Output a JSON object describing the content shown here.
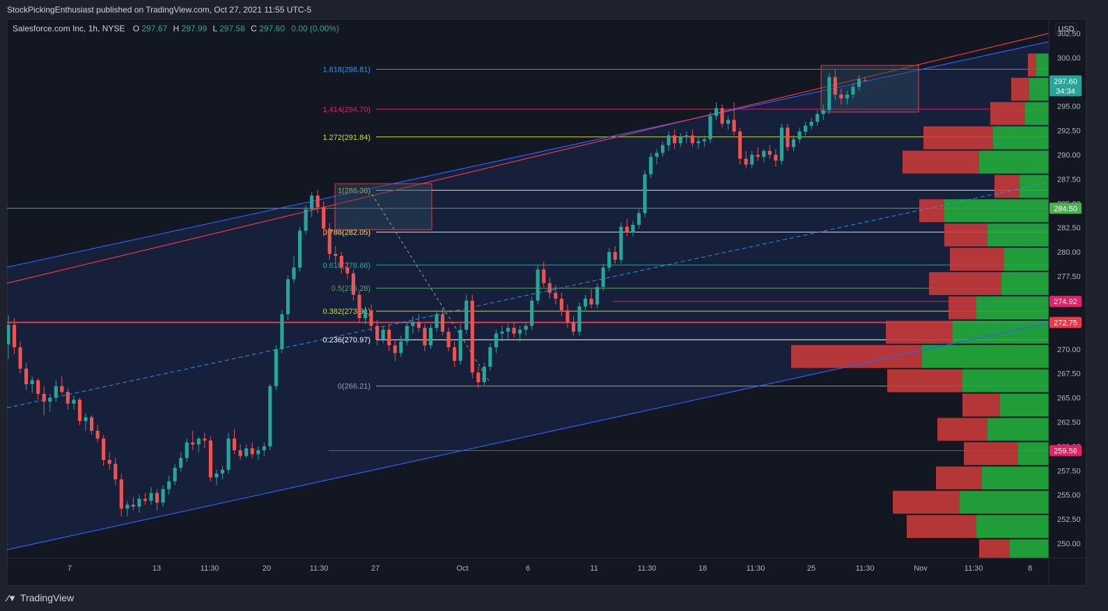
{
  "header": {
    "publisher": "StockPickingEnthusiast published on TradingView.com, Oct 27, 2021 11:55 UTC-5"
  },
  "legend": {
    "symbol": "Salesforce.com Inc, 1h, NYSE",
    "o_label": "O",
    "o_value": "297.67",
    "h_label": "H",
    "h_value": "297.99",
    "l_label": "L",
    "l_value": "297.58",
    "c_label": "C",
    "c_value": "297.60",
    "change": "0.00 (0.00%)"
  },
  "currency": "USD",
  "footer": {
    "brand": "TradingView"
  },
  "colors": {
    "up": "#26a69a",
    "down": "#ef5350",
    "channel": "#2962ff",
    "trend": "#f23645",
    "vp_up": "#22ab3c",
    "vp_down": "#c73a3a"
  },
  "chart_data": {
    "type": "candlestick",
    "ylim": [
      248.5,
      304.0
    ],
    "y_ticks": [
      250.0,
      252.5,
      255.0,
      257.5,
      260.0,
      262.5,
      265.0,
      267.5,
      270.0,
      272.5,
      275.0,
      277.5,
      280.0,
      282.5,
      285.0,
      287.5,
      290.0,
      292.5,
      295.0,
      297.5,
      300.0,
      302.5
    ],
    "x_ticks": [
      "7",
      "13",
      "11:30",
      "20",
      "11:30",
      "27",
      "Oct",
      "6",
      "11",
      "11:30",
      "18",
      "11:30",
      "25",
      "11:30",
      "Nov",
      "11:30",
      "8"
    ],
    "fib_levels": [
      {
        "label": "1.618(298.81)",
        "value": 298.81,
        "color": "#2196f3"
      },
      {
        "label": "1.414(294.70)",
        "value": 294.7,
        "color": "#e91e63"
      },
      {
        "label": "1.272(291.84)",
        "value": 291.84,
        "color": "#cddc39"
      },
      {
        "label": "1(286.36)",
        "value": 286.36,
        "color": "#ffeb3b"
      },
      {
        "label": "0.786(282.05)",
        "value": 282.05,
        "color": "#ffeb3b"
      },
      {
        "label": "0.618(278.66)",
        "value": 278.66,
        "color": "#26a69a"
      },
      {
        "label": "0.5(276.28)",
        "value": 276.28,
        "color": "#4caf50"
      },
      {
        "label": "0.382(273.91)",
        "value": 273.91,
        "color": "#cddc39"
      },
      {
        "label": "0.236(270.97)",
        "value": 270.97,
        "color": "#ffffff"
      },
      {
        "label": "0(266.21)",
        "value": 266.21,
        "color": "#9e9e9e"
      }
    ],
    "price_tags": [
      {
        "label": "297.60",
        "sub": "34:34",
        "value": 297.6,
        "color": "#26a69a"
      },
      {
        "label": "284.50",
        "value": 284.5,
        "color": "#4caf50"
      },
      {
        "label": "274.92",
        "value": 274.92,
        "color": "#e91e63"
      },
      {
        "label": "272.75",
        "value": 272.75,
        "color": "#f23645"
      },
      {
        "label": "259.56",
        "value": 259.56,
        "color": "#e91e63"
      }
    ],
    "horizontal_lines": [
      {
        "value": 284.5,
        "color": "#4caf50"
      },
      {
        "value": 272.75,
        "color": "#f23645"
      },
      {
        "value": 274.92,
        "color": "#e91e63"
      },
      {
        "value": 259.56,
        "color": "#e91e63"
      }
    ],
    "volume_profile": [
      {
        "price": 299.25,
        "up": 18,
        "down": 12
      },
      {
        "price": 296.75,
        "up": 28,
        "down": 26
      },
      {
        "price": 294.25,
        "up": 34,
        "down": 50
      },
      {
        "price": 291.75,
        "up": 80,
        "down": 100
      },
      {
        "price": 289.25,
        "up": 100,
        "down": 110
      },
      {
        "price": 286.75,
        "up": 42,
        "down": 36
      },
      {
        "price": 284.25,
        "up": 150,
        "down": 36
      },
      {
        "price": 281.75,
        "up": 88,
        "down": 62
      },
      {
        "price": 279.25,
        "up": 64,
        "down": 78
      },
      {
        "price": 276.75,
        "up": 68,
        "down": 104
      },
      {
        "price": 274.25,
        "up": 104,
        "down": 40
      },
      {
        "price": 271.75,
        "up": 138,
        "down": 96
      },
      {
        "price": 269.25,
        "up": 182,
        "down": 188
      },
      {
        "price": 266.75,
        "up": 124,
        "down": 108
      },
      {
        "price": 264.25,
        "up": 70,
        "down": 54
      },
      {
        "price": 261.75,
        "up": 88,
        "down": 72
      },
      {
        "price": 259.25,
        "up": 44,
        "down": 78
      },
      {
        "price": 256.75,
        "up": 96,
        "down": 66
      },
      {
        "price": 254.25,
        "up": 128,
        "down": 96
      },
      {
        "price": 251.75,
        "up": 104,
        "down": 100
      },
      {
        "price": 249.25,
        "up": 56,
        "down": 44
      },
      {
        "price": 246.75,
        "up": 78,
        "down": 52
      }
    ],
    "ohlc": [
      [
        270.5,
        273.5,
        269.0,
        272.5
      ],
      [
        272.5,
        273.2,
        269.5,
        270.2
      ],
      [
        270.2,
        270.8,
        267.5,
        268.0
      ],
      [
        268.0,
        268.6,
        265.8,
        266.4
      ],
      [
        266.4,
        267.2,
        265.5,
        266.8
      ],
      [
        266.8,
        267.0,
        264.8,
        265.4
      ],
      [
        265.4,
        266.2,
        263.2,
        264.6
      ],
      [
        264.6,
        265.4,
        263.6,
        265.0
      ],
      [
        265.0,
        266.8,
        264.6,
        266.2
      ],
      [
        266.2,
        267.2,
        265.4,
        265.6
      ],
      [
        265.6,
        266.0,
        263.8,
        264.4
      ],
      [
        264.4,
        265.2,
        263.8,
        264.8
      ],
      [
        264.8,
        265.0,
        262.2,
        262.6
      ],
      [
        262.6,
        263.4,
        261.6,
        263.0
      ],
      [
        263.0,
        263.2,
        261.2,
        261.6
      ],
      [
        261.6,
        262.2,
        260.4,
        260.8
      ],
      [
        260.8,
        261.2,
        258.0,
        258.6
      ],
      [
        258.6,
        259.4,
        257.6,
        258.2
      ],
      [
        258.2,
        258.8,
        256.0,
        256.6
      ],
      [
        256.6,
        257.2,
        252.8,
        253.6
      ],
      [
        253.6,
        254.4,
        252.8,
        254.0
      ],
      [
        254.0,
        254.8,
        253.4,
        253.8
      ],
      [
        253.8,
        255.0,
        253.2,
        254.6
      ],
      [
        254.6,
        255.2,
        254.0,
        254.4
      ],
      [
        254.4,
        255.8,
        254.0,
        255.2
      ],
      [
        255.2,
        255.6,
        253.4,
        254.2
      ],
      [
        254.2,
        256.0,
        253.8,
        255.6
      ],
      [
        255.6,
        257.0,
        255.0,
        256.4
      ],
      [
        256.4,
        258.2,
        256.0,
        257.8
      ],
      [
        257.8,
        259.4,
        257.4,
        258.8
      ],
      [
        258.8,
        260.8,
        258.4,
        260.4
      ],
      [
        260.4,
        261.6,
        259.6,
        260.2
      ],
      [
        260.2,
        261.0,
        259.4,
        260.8
      ],
      [
        260.8,
        261.4,
        259.8,
        260.6
      ],
      [
        260.6,
        261.0,
        256.4,
        256.8
      ],
      [
        256.8,
        257.6,
        256.0,
        257.2
      ],
      [
        257.2,
        258.0,
        256.6,
        257.6
      ],
      [
        257.6,
        261.4,
        257.2,
        260.8
      ],
      [
        260.8,
        261.8,
        259.2,
        259.6
      ],
      [
        259.6,
        260.2,
        258.6,
        259.0
      ],
      [
        259.0,
        260.2,
        258.8,
        259.8
      ],
      [
        259.8,
        260.4,
        258.8,
        259.2
      ],
      [
        259.2,
        260.0,
        258.6,
        259.6
      ],
      [
        259.6,
        260.4,
        259.0,
        260.0
      ],
      [
        260.0,
        266.4,
        259.6,
        266.2
      ],
      [
        266.2,
        270.4,
        265.8,
        270.0
      ],
      [
        270.0,
        274.0,
        269.6,
        273.6
      ],
      [
        273.6,
        277.6,
        273.0,
        277.2
      ],
      [
        277.2,
        279.6,
        276.8,
        278.4
      ],
      [
        278.4,
        282.6,
        278.0,
        282.2
      ],
      [
        282.2,
        284.8,
        281.8,
        284.4
      ],
      [
        284.4,
        286.2,
        283.6,
        285.8
      ],
      [
        285.8,
        286.4,
        284.0,
        284.6
      ],
      [
        284.6,
        285.2,
        281.6,
        282.4
      ],
      [
        282.4,
        283.0,
        279.2,
        279.8
      ],
      [
        279.8,
        280.6,
        278.8,
        279.6
      ],
      [
        279.6,
        280.0,
        277.8,
        278.4
      ],
      [
        278.4,
        279.0,
        277.2,
        277.8
      ],
      [
        277.8,
        278.2,
        275.0,
        275.6
      ],
      [
        275.6,
        276.0,
        272.8,
        273.2
      ],
      [
        273.2,
        274.4,
        272.6,
        274.0
      ],
      [
        274.0,
        274.6,
        271.8,
        272.4
      ],
      [
        272.4,
        273.0,
        270.4,
        271.0
      ],
      [
        271.0,
        272.4,
        270.6,
        272.0
      ],
      [
        272.0,
        272.6,
        269.8,
        270.4
      ],
      [
        270.4,
        271.0,
        268.8,
        269.6
      ],
      [
        269.6,
        271.4,
        269.2,
        270.8
      ],
      [
        270.8,
        272.8,
        270.4,
        272.4
      ],
      [
        272.4,
        273.4,
        271.6,
        272.8
      ],
      [
        272.8,
        273.6,
        271.8,
        272.2
      ],
      [
        272.2,
        272.6,
        269.8,
        270.4
      ],
      [
        270.4,
        272.6,
        270.0,
        272.2
      ],
      [
        272.2,
        274.0,
        271.8,
        273.6
      ],
      [
        273.6,
        274.2,
        271.4,
        271.8
      ],
      [
        271.8,
        272.2,
        269.8,
        270.2
      ],
      [
        270.2,
        270.8,
        268.2,
        268.8
      ],
      [
        268.8,
        272.6,
        268.4,
        272.0
      ],
      [
        272.0,
        275.6,
        271.6,
        275.0
      ],
      [
        275.0,
        275.6,
        267.0,
        267.6
      ],
      [
        267.6,
        268.2,
        266.0,
        266.6
      ],
      [
        266.6,
        268.6,
        266.2,
        268.2
      ],
      [
        268.2,
        270.6,
        267.8,
        270.2
      ],
      [
        270.2,
        272.0,
        269.6,
        271.6
      ],
      [
        271.6,
        272.4,
        270.8,
        271.8
      ],
      [
        271.8,
        272.6,
        271.0,
        272.2
      ],
      [
        272.2,
        272.8,
        271.2,
        271.6
      ],
      [
        271.6,
        272.4,
        270.8,
        272.0
      ],
      [
        272.0,
        272.8,
        271.4,
        272.4
      ],
      [
        272.4,
        275.4,
        272.0,
        275.0
      ],
      [
        275.0,
        278.6,
        274.6,
        278.2
      ],
      [
        278.2,
        279.0,
        276.4,
        276.8
      ],
      [
        276.8,
        277.4,
        275.2,
        275.8
      ],
      [
        275.8,
        276.6,
        274.6,
        275.2
      ],
      [
        275.2,
        275.8,
        273.4,
        274.0
      ],
      [
        274.0,
        274.6,
        272.2,
        272.8
      ],
      [
        272.8,
        273.4,
        271.4,
        271.8
      ],
      [
        271.8,
        274.8,
        271.4,
        274.4
      ],
      [
        274.4,
        275.6,
        274.0,
        275.2
      ],
      [
        275.2,
        276.2,
        274.2,
        274.6
      ],
      [
        274.6,
        276.8,
        274.2,
        276.4
      ],
      [
        276.4,
        278.8,
        276.0,
        278.4
      ],
      [
        278.4,
        280.4,
        278.0,
        280.0
      ],
      [
        280.0,
        280.6,
        278.8,
        279.2
      ],
      [
        279.2,
        283.0,
        278.8,
        282.6
      ],
      [
        282.6,
        283.4,
        281.6,
        282.0
      ],
      [
        282.0,
        283.2,
        281.6,
        282.8
      ],
      [
        282.8,
        284.4,
        282.4,
        284.0
      ],
      [
        284.0,
        288.4,
        283.6,
        288.0
      ],
      [
        288.0,
        290.2,
        287.6,
        289.8
      ],
      [
        289.8,
        290.6,
        289.0,
        290.2
      ],
      [
        290.2,
        291.4,
        289.8,
        291.0
      ],
      [
        291.0,
        292.4,
        290.4,
        292.0
      ],
      [
        292.0,
        292.6,
        290.6,
        291.2
      ],
      [
        291.2,
        292.2,
        290.8,
        291.8
      ],
      [
        291.8,
        292.4,
        291.2,
        292.0
      ],
      [
        292.0,
        292.6,
        290.8,
        291.2
      ],
      [
        291.2,
        291.8,
        290.6,
        291.4
      ],
      [
        291.4,
        292.0,
        290.8,
        291.6
      ],
      [
        291.6,
        294.4,
        291.2,
        294.0
      ],
      [
        294.0,
        295.4,
        293.6,
        294.8
      ],
      [
        294.8,
        295.2,
        292.8,
        293.2
      ],
      [
        293.2,
        294.0,
        292.6,
        293.6
      ],
      [
        293.6,
        295.4,
        292.0,
        292.4
      ],
      [
        292.4,
        292.8,
        289.0,
        289.6
      ],
      [
        289.6,
        290.4,
        288.6,
        289.0
      ],
      [
        289.0,
        290.4,
        288.6,
        290.0
      ],
      [
        290.0,
        290.8,
        289.4,
        289.8
      ],
      [
        289.8,
        290.6,
        289.2,
        290.4
      ],
      [
        290.4,
        291.0,
        289.6,
        290.0
      ],
      [
        290.0,
        290.6,
        288.8,
        289.4
      ],
      [
        289.4,
        293.2,
        289.0,
        292.8
      ],
      [
        292.8,
        293.2,
        290.4,
        290.8
      ],
      [
        290.8,
        292.0,
        290.4,
        291.6
      ],
      [
        291.6,
        292.8,
        291.2,
        292.4
      ],
      [
        292.4,
        293.4,
        292.0,
        293.0
      ],
      [
        293.0,
        293.8,
        292.6,
        293.4
      ],
      [
        293.4,
        294.6,
        293.0,
        294.2
      ],
      [
        294.2,
        295.2,
        293.6,
        294.6
      ],
      [
        294.6,
        298.4,
        294.2,
        298.0
      ],
      [
        298.0,
        298.8,
        295.6,
        296.2
      ],
      [
        296.2,
        296.8,
        295.2,
        295.8
      ],
      [
        295.8,
        296.6,
        295.2,
        296.2
      ],
      [
        296.2,
        297.4,
        295.8,
        297.0
      ],
      [
        297.0,
        298.2,
        296.6,
        297.8
      ],
      [
        297.67,
        297.99,
        297.58,
        297.6
      ]
    ]
  }
}
